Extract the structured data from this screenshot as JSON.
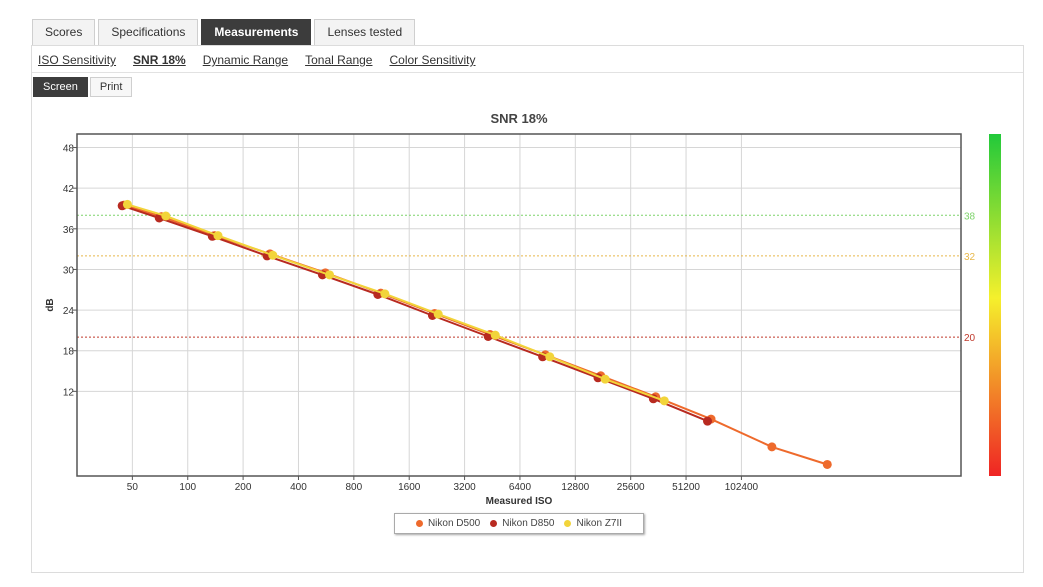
{
  "tabs": [
    {
      "label": "Scores",
      "active": false
    },
    {
      "label": "Specifications",
      "active": false
    },
    {
      "label": "Measurements",
      "active": true
    },
    {
      "label": "Lenses tested",
      "active": false
    }
  ],
  "subnav": [
    {
      "label": "ISO Sensitivity",
      "active": false
    },
    {
      "label": "SNR 18%",
      "active": true
    },
    {
      "label": "Dynamic Range",
      "active": false
    },
    {
      "label": "Tonal Range",
      "active": false
    },
    {
      "label": "Color Sensitivity",
      "active": false
    }
  ],
  "modes": [
    {
      "label": "Screen",
      "active": true
    },
    {
      "label": "Print",
      "active": false
    }
  ],
  "chart_data": {
    "type": "line",
    "title": "SNR 18%",
    "xlabel": "Measured ISO",
    "ylabel": "dB",
    "x_scale": "log2",
    "x_ticks": [
      50,
      100,
      200,
      400,
      800,
      1600,
      3200,
      6400,
      12800,
      25600,
      51200,
      102400
    ],
    "x_tick_labels": [
      "50",
      "100",
      "200",
      "400",
      "800",
      "1600",
      "3200",
      "6400",
      "12800",
      "25600",
      "51200",
      "102400"
    ],
    "xlim": [
      25,
      1600000
    ],
    "y_ticks": [
      12,
      18,
      24,
      30,
      36,
      42,
      48
    ],
    "y_tick_labels": [
      "12",
      "18",
      "24",
      "30",
      "36",
      "42",
      "48"
    ],
    "ylim": [
      -0.5,
      50
    ],
    "grid": true,
    "legend_position": "bottom",
    "reference_lines": [
      {
        "value": 38,
        "label": "38",
        "color": "#7dd36a"
      },
      {
        "value": 32,
        "label": "32",
        "color": "#e8b84a"
      },
      {
        "value": 20,
        "label": "20",
        "color": "#c0392b"
      }
    ],
    "color_scale": {
      "top": "#22c93a",
      "middle": "#f5f02c",
      "bottom": "#ef2424"
    },
    "series": [
      {
        "name": "Nikon D500",
        "color": "#ee6a2c",
        "x": [
          45,
          72,
          140,
          280,
          560,
          1120,
          2200,
          4400,
          8800,
          17600,
          35000,
          70000,
          150000,
          300000
        ],
        "y": [
          39.5,
          37.8,
          35.0,
          32.3,
          29.5,
          26.5,
          23.5,
          20.4,
          17.4,
          14.3,
          11.2,
          7.9,
          3.8,
          1.2
        ]
      },
      {
        "name": "Nikon D850",
        "color": "#b82a20",
        "x": [
          44,
          70,
          136,
          270,
          540,
          1080,
          2140,
          4300,
          8500,
          17000,
          34000,
          67000
        ],
        "y": [
          39.4,
          37.6,
          34.9,
          32.0,
          29.2,
          26.3,
          23.2,
          20.1,
          17.1,
          14.0,
          10.9,
          7.6
        ]
      },
      {
        "name": "Nikon Z7II",
        "color": "#f2d43a",
        "x": [
          47,
          76,
          146,
          290,
          590,
          1180,
          2300,
          4700,
          9300,
          18600,
          39000
        ],
        "y": [
          39.6,
          37.9,
          35.0,
          32.1,
          29.2,
          26.4,
          23.4,
          20.3,
          17.1,
          13.8,
          10.6
        ]
      }
    ]
  }
}
